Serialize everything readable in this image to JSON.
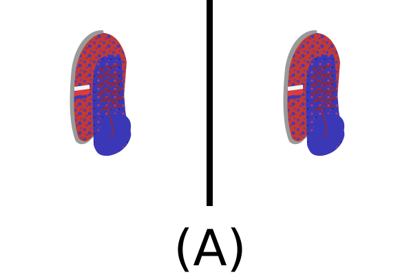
{
  "caption": "(A)",
  "panels": [
    {
      "id": "left",
      "subject": "sneaker"
    },
    {
      "id": "right",
      "subject": "sneaker"
    }
  ],
  "colors": {
    "background": "#ffffff",
    "divider": "#000000",
    "shoe_body": "#c23a34",
    "shoe_speckle": "#5a3aa8",
    "shoe_upper": "#3b38b8",
    "shoe_sole": "#9a9a9a",
    "stripe_white": "#f4f4f4",
    "stripe_red": "#e23a3a",
    "lace": "#8a2a40"
  }
}
